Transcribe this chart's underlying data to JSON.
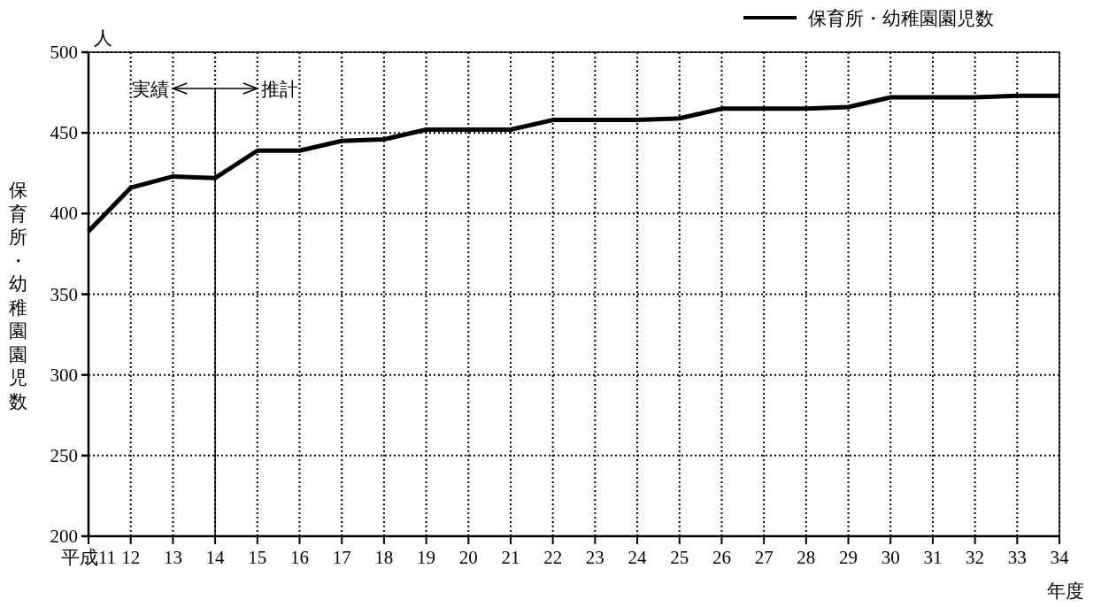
{
  "chart_data": {
    "type": "line",
    "xlabel": "年度",
    "ylabel": "保育所・幼稚園園児数",
    "categories": [
      "平成11",
      "12",
      "13",
      "14",
      "15",
      "16",
      "17",
      "18",
      "19",
      "20",
      "21",
      "22",
      "23",
      "24",
      "25",
      "26",
      "27",
      "28",
      "29",
      "30",
      "31",
      "32",
      "33",
      "34"
    ],
    "series": [
      {
        "name": "保育所・幼稚園園児数",
        "color": "#000000",
        "values": [
          389,
          416,
          423,
          422,
          439,
          439,
          445,
          446,
          452,
          452,
          452,
          458,
          458,
          458,
          459,
          465,
          465,
          465,
          466,
          472,
          472,
          472,
          473,
          473
        ]
      }
    ],
    "ylim": [
      200,
      500
    ],
    "yticks": [
      200,
      250,
      300,
      350,
      400,
      450,
      500
    ],
    "ref_lines": [
      {
        "axis": "x",
        "value": "14",
        "label": null,
        "color": "#000000",
        "line_style": "solid"
      }
    ],
    "annotations": [
      "人",
      "実績",
      "推計"
    ],
    "grid": true,
    "legend": "top right",
    "marker": "none",
    "line_style": "solid"
  }
}
